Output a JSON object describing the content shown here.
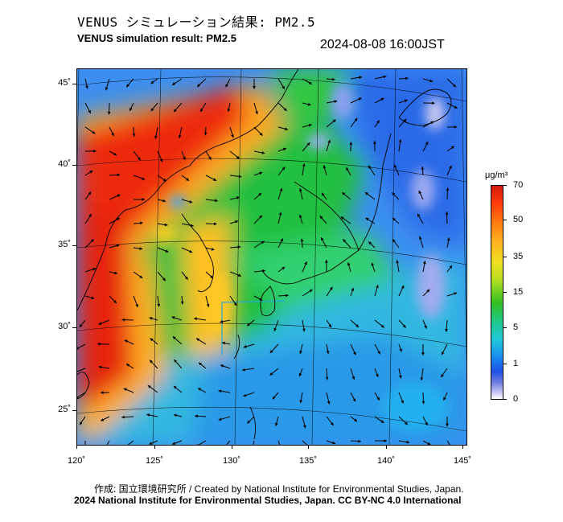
{
  "header": {
    "title_jp": "VENUS シミュレーション結果: PM2.5",
    "title_en": "VENUS simulation result: PM2.5",
    "timestamp": "2024-08-08 16:00JST"
  },
  "map": {
    "lat_labels": [
      "45˚",
      "40˚",
      "35˚",
      "30˚",
      "25˚"
    ],
    "lon_labels": [
      "120˚",
      "125˚",
      "130˚",
      "135˚",
      "140˚",
      "145˚"
    ],
    "wind_vector_color": "#000000",
    "coastline_color": "#000000",
    "grid_color": "#000000"
  },
  "colorbar": {
    "unit": "μg/m³",
    "labels": [
      "70",
      "50",
      "35",
      "15",
      "5",
      "1",
      "0"
    ],
    "colors": [
      "#d11a0c",
      "#ff7a10",
      "#f0e020",
      "#30c020",
      "#20c8d8",
      "#1e50e8",
      "#ffffff"
    ]
  },
  "footer": {
    "credit_line1": "作成: 国立環境研究所 / Created by National Institute for Environmental Studies, Japan.",
    "credit_line2": "2024 National Institute for Environmental Studies, Japan. CC BY-NC 4.0 International"
  }
}
